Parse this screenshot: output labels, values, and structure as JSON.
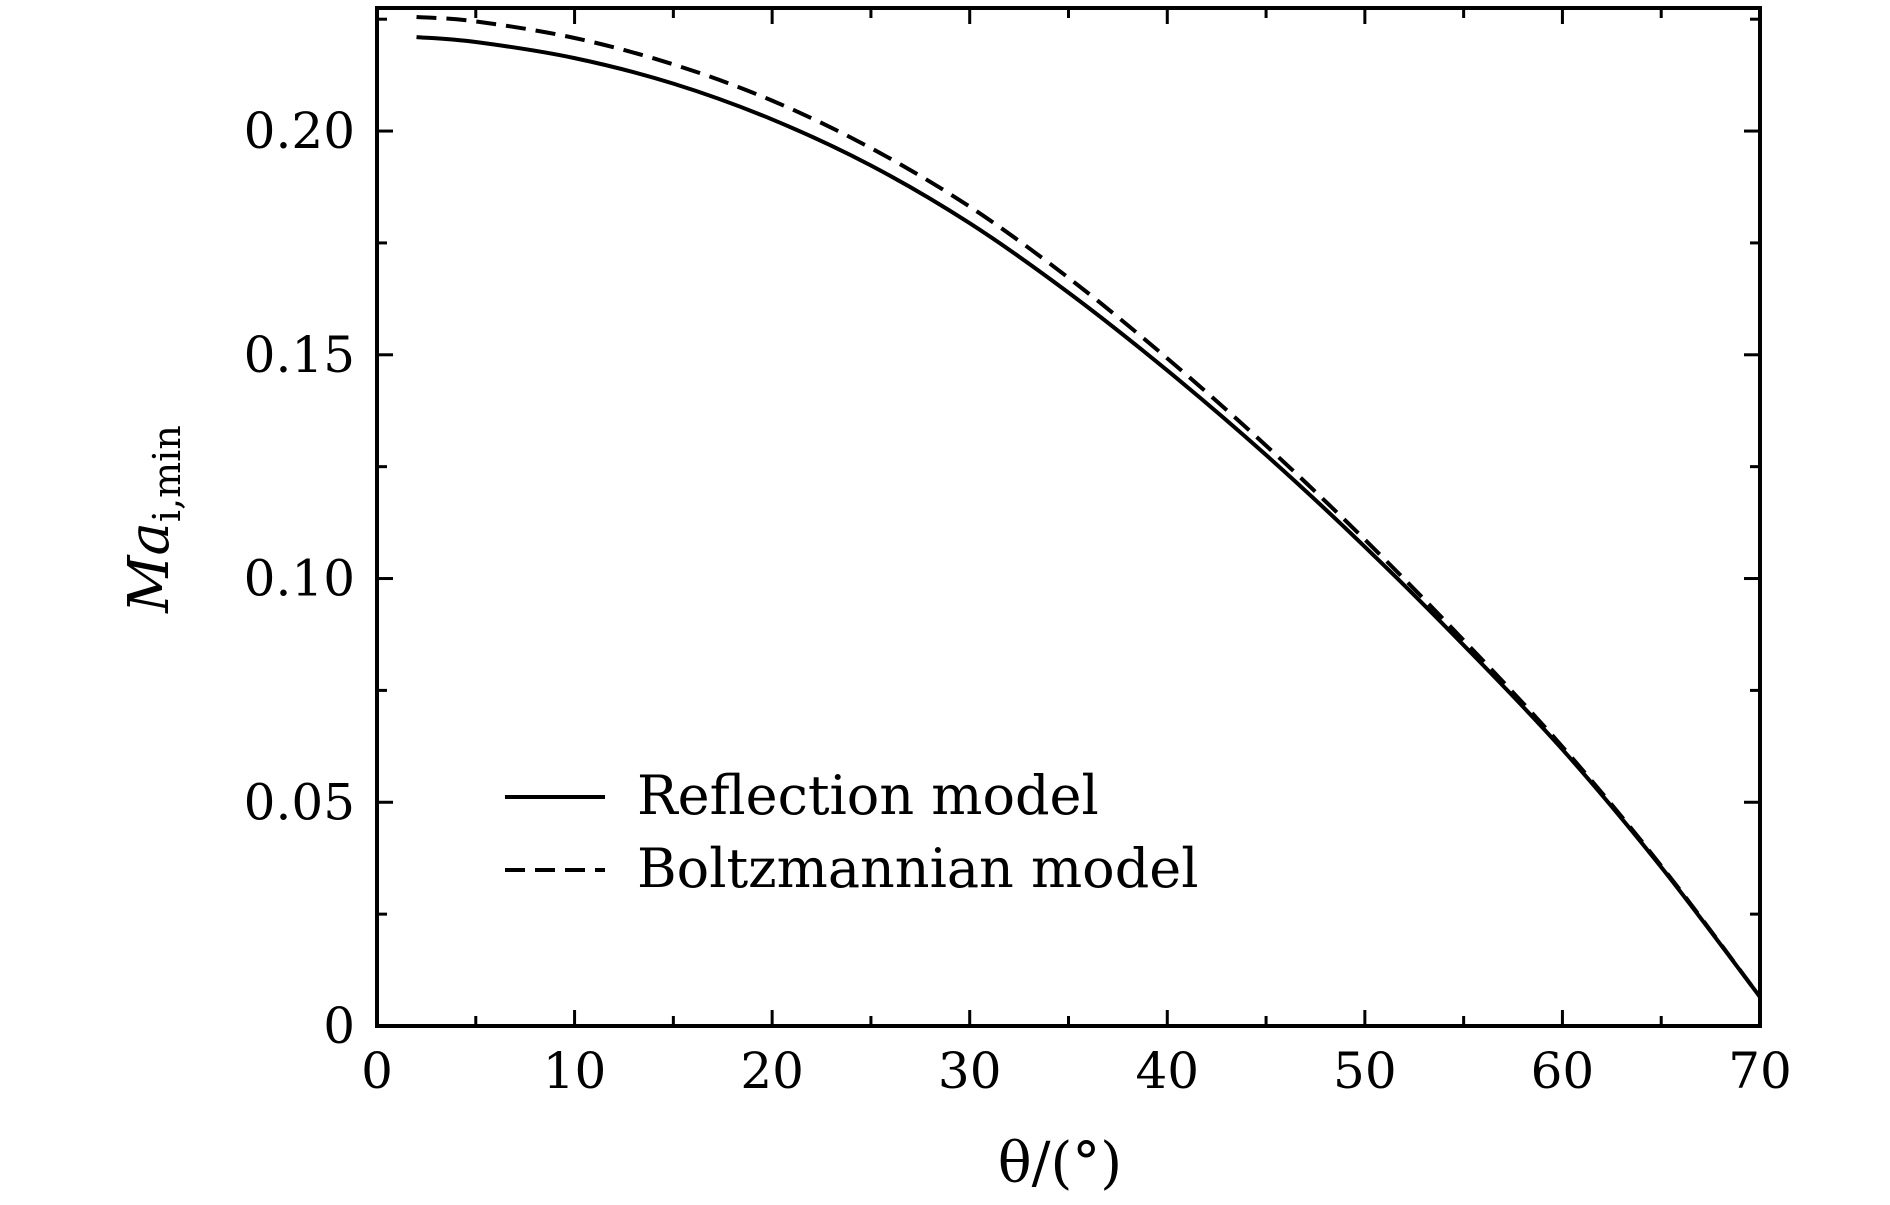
{
  "chart_data": {
    "type": "line",
    "xlabel": "θ/(°)",
    "ylabel": "Ma",
    "ylabel_subscript": "i,min",
    "xlim": [
      0,
      70
    ],
    "ylim": [
      0,
      0.2275
    ],
    "x_ticks": [
      0,
      10,
      20,
      30,
      40,
      50,
      60,
      70
    ],
    "x_tick_labels": [
      "0",
      "10",
      "20",
      "30",
      "40",
      "50",
      "60",
      "70"
    ],
    "x_minor_ticks": [
      5,
      15,
      25,
      35,
      45,
      55,
      65
    ],
    "y_ticks": [
      0,
      0.05,
      0.1,
      0.15,
      0.2
    ],
    "y_tick_labels": [
      "0",
      "0.05",
      "0.10",
      "0.15",
      "0.20"
    ],
    "y_minor_ticks": [
      0.025,
      0.075,
      0.125,
      0.175,
      0.225
    ],
    "grid": false,
    "legend_position": "lower-left",
    "x": [
      2,
      5,
      10,
      15,
      20,
      25,
      30,
      35,
      40,
      45,
      50,
      55,
      60,
      65,
      70
    ],
    "series": [
      {
        "name": "Reflection model",
        "style": "solid",
        "color": "#000000",
        "values": [
          0.221,
          0.2199,
          0.2163,
          0.2106,
          0.2026,
          0.1923,
          0.1794,
          0.1639,
          0.1465,
          0.1276,
          0.1071,
          0.0851,
          0.0618,
          0.0355,
          0.0065
        ]
      },
      {
        "name": "Boltzmannian model",
        "style": "dashed",
        "color": "#000000",
        "values": [
          0.2255,
          0.2245,
          0.2208,
          0.2149,
          0.2068,
          0.1962,
          0.1831,
          0.1672,
          0.1492,
          0.1297,
          0.1087,
          0.0862,
          0.0624,
          0.0358,
          0.0065
        ]
      }
    ]
  }
}
